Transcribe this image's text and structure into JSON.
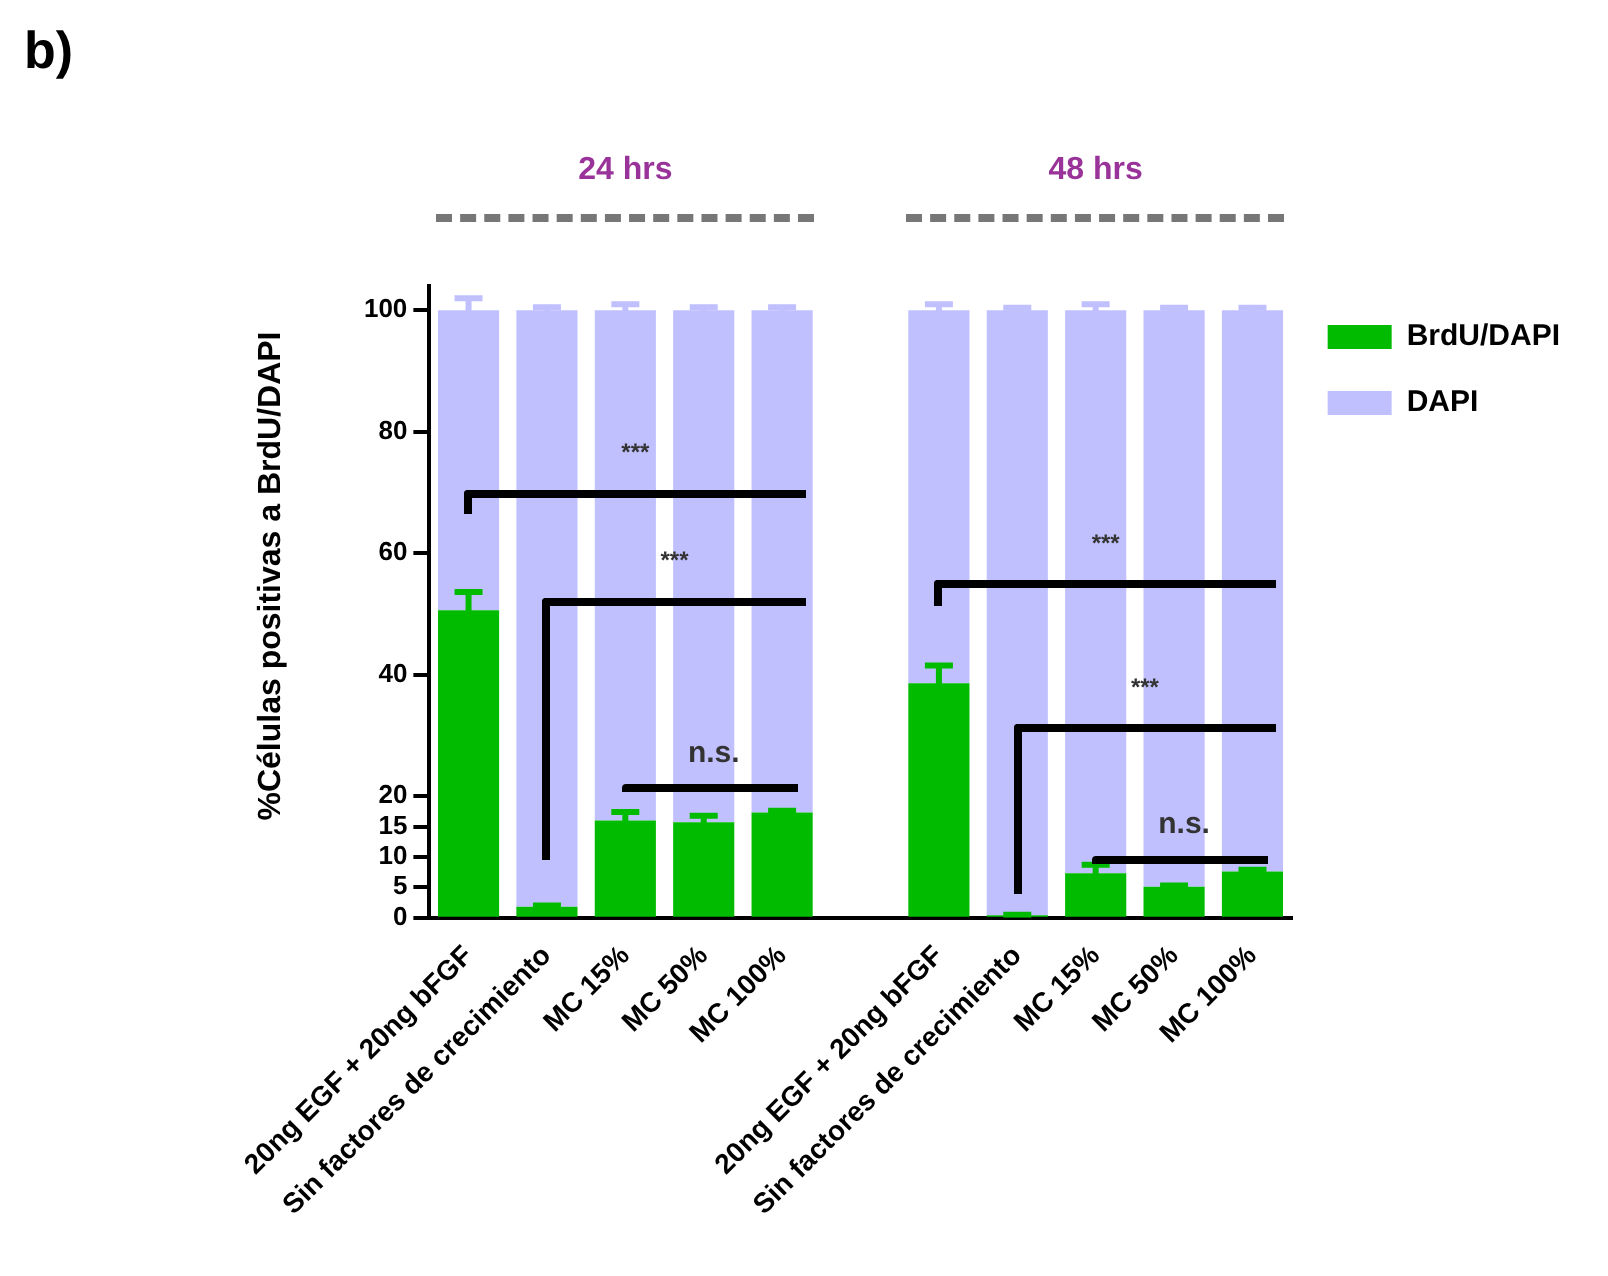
{
  "chart_data": {
    "type": "bar",
    "stacked": true,
    "title": "b)",
    "ylabel": "%Células positivas a BrdU/DAPI",
    "categories": [
      "20ng EGF + 20ng bFGF",
      "Sin factores de crecimiento",
      "MC 15%",
      "MC 50%",
      "MC 100%",
      null,
      "20ng EGF + 20ng bFGF",
      "Sin factores de crecimiento",
      "MC 15%",
      "MC 50%",
      "MC 100%"
    ],
    "series": [
      {
        "name": "BrdU/DAPI",
        "color": "#00bb00",
        "values": [
          50.6,
          1.8,
          16,
          15.7,
          17.3,
          null,
          38.6,
          0.4,
          7.3,
          5.1,
          7.6
        ],
        "errors": [
          3,
          0.2,
          1.4,
          1.1,
          0.3,
          null,
          2.9,
          0.1,
          1.4,
          0.2,
          0.3
        ]
      },
      {
        "name": "DAPI",
        "color": "#c0c0ff",
        "values": [
          49.4,
          98.2,
          84,
          84.3,
          82.7,
          null,
          61.4,
          99.6,
          92.7,
          94.9,
          92.4
        ],
        "errors": [
          2,
          0.5,
          1,
          0.5,
          0.5,
          null,
          1,
          0.4,
          1,
          0.4,
          0.4
        ]
      }
    ],
    "ylim": [
      0,
      104
    ],
    "yticks": [
      0,
      5,
      10,
      15,
      20,
      40,
      60,
      80,
      100
    ],
    "legend": "top right",
    "annotations": [
      "24 hrs",
      "48 hrs",
      "***",
      "***",
      "n.s.",
      "***",
      "***",
      "n.s."
    ]
  }
}
